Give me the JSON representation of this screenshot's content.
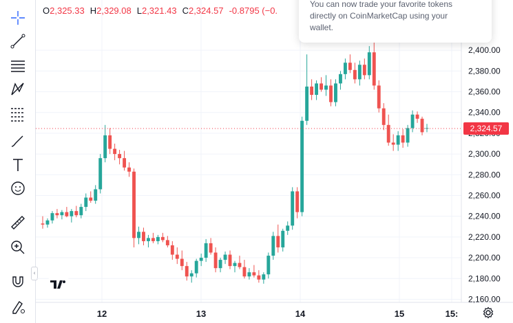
{
  "legend": {
    "open_label": "O",
    "open_value": "2,325.33",
    "high_label": "H",
    "high_value": "2,329.08",
    "low_label": "L",
    "low_value": "2,321.43",
    "close_label": "C",
    "close_value": "2,324.57",
    "change_value": "-0.8795 (−0."
  },
  "tooltip": {
    "line1": "You can now trade your favorite tokens",
    "line2": "directly on CoinMarketCap using your",
    "line3": "wallet."
  },
  "current_price_label": "2,324.57",
  "colors": {
    "up": "#26a69a",
    "down": "#ef5350",
    "badge": "#f23645"
  },
  "toolbar_icons": [
    "crosshair-icon",
    "trend-line-icon",
    "fib-retracement-icon",
    "pattern-icon",
    "prediction-icon",
    "brush-icon",
    "text-icon",
    "emoji-icon",
    "ruler-icon",
    "zoom-in-icon",
    "magnet-icon",
    "lock-drawing-icon"
  ],
  "chart_data": {
    "type": "candlestick",
    "y_ticks": [
      "2,400.00",
      "2,380.00",
      "2,360.00",
      "2,340.00",
      "2,320.00",
      "2,300.00",
      "2,280.00",
      "2,260.00",
      "2,240.00",
      "2,220.00",
      "2,200.00",
      "2,180.00",
      "2,160.00"
    ],
    "x_ticks": [
      "12",
      "13",
      "14",
      "15",
      "15:"
    ],
    "ylim": [
      2155,
      2412
    ],
    "current_price": 2324.57,
    "candles": [
      [
        2233,
        2240,
        2228,
        2232
      ],
      [
        2232,
        2238,
        2229,
        2236
      ],
      [
        2236,
        2245,
        2233,
        2243
      ],
      [
        2243,
        2247,
        2238,
        2241
      ],
      [
        2241,
        2246,
        2237,
        2244
      ],
      [
        2244,
        2249,
        2239,
        2240
      ],
      [
        2240,
        2247,
        2234,
        2245
      ],
      [
        2245,
        2250,
        2239,
        2241
      ],
      [
        2241,
        2252,
        2238,
        2249
      ],
      [
        2249,
        2262,
        2245,
        2258
      ],
      [
        2258,
        2264,
        2253,
        2255
      ],
      [
        2255,
        2270,
        2252,
        2266
      ],
      [
        2266,
        2300,
        2262,
        2296
      ],
      [
        2296,
        2328,
        2292,
        2318
      ],
      [
        2318,
        2325,
        2300,
        2305
      ],
      [
        2305,
        2310,
        2294,
        2300
      ],
      [
        2300,
        2304,
        2290,
        2296
      ],
      [
        2296,
        2303,
        2284,
        2287
      ],
      [
        2287,
        2292,
        2278,
        2283
      ],
      [
        2283,
        2286,
        2210,
        2219
      ],
      [
        2219,
        2230,
        2213,
        2225
      ],
      [
        2225,
        2229,
        2212,
        2216
      ],
      [
        2216,
        2222,
        2210,
        2219
      ],
      [
        2219,
        2224,
        2214,
        2216
      ],
      [
        2216,
        2222,
        2213,
        2220
      ],
      [
        2220,
        2224,
        2215,
        2217
      ],
      [
        2217,
        2221,
        2210,
        2212
      ],
      [
        2212,
        2216,
        2198,
        2203
      ],
      [
        2203,
        2210,
        2194,
        2199
      ],
      [
        2199,
        2207,
        2188,
        2192
      ],
      [
        2192,
        2196,
        2178,
        2182
      ],
      [
        2182,
        2188,
        2176,
        2185
      ],
      [
        2185,
        2199,
        2181,
        2197
      ],
      [
        2197,
        2204,
        2192,
        2200
      ],
      [
        2200,
        2218,
        2196,
        2214
      ],
      [
        2214,
        2219,
        2203,
        2205
      ],
      [
        2205,
        2210,
        2186,
        2190
      ],
      [
        2190,
        2200,
        2186,
        2198
      ],
      [
        2198,
        2206,
        2194,
        2203
      ],
      [
        2203,
        2207,
        2189,
        2192
      ],
      [
        2192,
        2197,
        2186,
        2195
      ],
      [
        2195,
        2202,
        2189,
        2191
      ],
      [
        2191,
        2198,
        2180,
        2182
      ],
      [
        2182,
        2190,
        2179,
        2186
      ],
      [
        2186,
        2193,
        2181,
        2183
      ],
      [
        2183,
        2188,
        2176,
        2179
      ],
      [
        2179,
        2186,
        2175,
        2184
      ],
      [
        2184,
        2205,
        2180,
        2202
      ],
      [
        2202,
        2225,
        2198,
        2221
      ],
      [
        2221,
        2232,
        2205,
        2210
      ],
      [
        2210,
        2228,
        2206,
        2226
      ],
      [
        2226,
        2235,
        2222,
        2231
      ],
      [
        2231,
        2268,
        2227,
        2264
      ],
      [
        2264,
        2268,
        2238,
        2244
      ],
      [
        2244,
        2336,
        2240,
        2332
      ],
      [
        2332,
        2396,
        2328,
        2365
      ],
      [
        2365,
        2372,
        2352,
        2357
      ],
      [
        2357,
        2371,
        2352,
        2368
      ],
      [
        2368,
        2374,
        2360,
        2362
      ],
      [
        2362,
        2376,
        2356,
        2366
      ],
      [
        2366,
        2372,
        2346,
        2350
      ],
      [
        2350,
        2372,
        2346,
        2368
      ],
      [
        2368,
        2380,
        2362,
        2377
      ],
      [
        2377,
        2392,
        2372,
        2388
      ],
      [
        2388,
        2396,
        2378,
        2381
      ],
      [
        2381,
        2388,
        2368,
        2372
      ],
      [
        2372,
        2390,
        2366,
        2386
      ],
      [
        2386,
        2392,
        2372,
        2376
      ],
      [
        2376,
        2404,
        2372,
        2398
      ],
      [
        2398,
        2408,
        2362,
        2366
      ],
      [
        2366,
        2371,
        2340,
        2344
      ],
      [
        2344,
        2349,
        2323,
        2328
      ],
      [
        2328,
        2338,
        2308,
        2311
      ],
      [
        2311,
        2319,
        2303,
        2309
      ],
      [
        2309,
        2322,
        2303,
        2318
      ],
      [
        2318,
        2324,
        2306,
        2311
      ],
      [
        2311,
        2328,
        2307,
        2325
      ],
      [
        2325,
        2342,
        2321,
        2338
      ],
      [
        2338,
        2341,
        2330,
        2334
      ],
      [
        2334,
        2336,
        2318,
        2321
      ],
      [
        2325,
        2329,
        2321,
        2325
      ]
    ]
  }
}
